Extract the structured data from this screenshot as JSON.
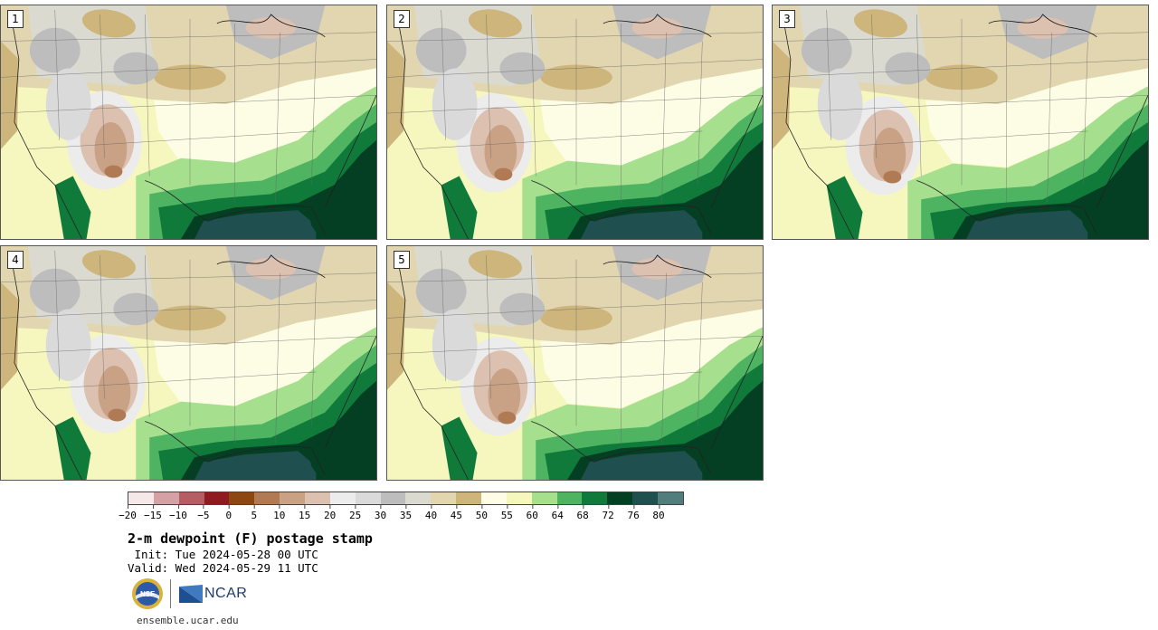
{
  "panels": [
    {
      "label": "1",
      "variant": 0
    },
    {
      "label": "2",
      "variant": 1
    },
    {
      "label": "3",
      "variant": 2
    },
    {
      "label": "4",
      "variant": 1
    },
    {
      "label": "5",
      "variant": 2
    }
  ],
  "colorbar": {
    "colors": [
      "#f6e8e8",
      "#d4a1a5",
      "#b55d62",
      "#8f1a1f",
      "#8d4712",
      "#b07a55",
      "#c9a184",
      "#dcc1b0",
      "#ececec",
      "#dadada",
      "#bdbdbd",
      "#dadad0",
      "#e2d6b0",
      "#cdb57c",
      "#fdfde6",
      "#f6f7be",
      "#a6df8e",
      "#4fb462",
      "#0f7a3a",
      "#053f23",
      "#1f4f4e",
      "#537d7c"
    ],
    "tick_labels": [
      "−20",
      "−15",
      "−10",
      "−5",
      "0",
      "5",
      "10",
      "15",
      "20",
      "25",
      "30",
      "35",
      "40",
      "45",
      "50",
      "55",
      "60",
      "64",
      "68",
      "72",
      "76",
      "80"
    ]
  },
  "title": "2-m dewpoint (F) postage stamp",
  "init": " Init: Tue 2024-05-28 00 UTC",
  "valid": "Valid: Wed 2024-05-29 11 UTC",
  "logos": {
    "nsf": "NSF",
    "ncar": "NCAR"
  },
  "site": "ensemble.ucar.edu"
}
